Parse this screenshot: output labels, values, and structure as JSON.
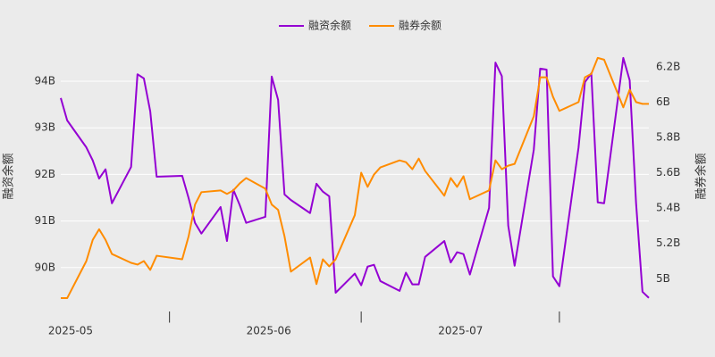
{
  "chart_data": {
    "type": "line",
    "x": [
      "2025-05-01",
      "2025-05-02",
      "2025-05-05",
      "2025-05-06",
      "2025-05-07",
      "2025-05-08",
      "2025-05-09",
      "2025-05-12",
      "2025-05-13",
      "2025-05-14",
      "2025-05-15",
      "2025-05-16",
      "2025-05-20",
      "2025-05-21",
      "2025-05-22",
      "2025-05-23",
      "2025-05-26",
      "2025-05-27",
      "2025-05-28",
      "2025-05-29",
      "2025-05-30",
      "2025-06-02",
      "2025-06-03",
      "2025-06-04",
      "2025-06-05",
      "2025-06-06",
      "2025-06-09",
      "2025-06-10",
      "2025-06-11",
      "2025-06-12",
      "2025-06-13",
      "2025-06-16",
      "2025-06-17",
      "2025-06-18",
      "2025-06-19",
      "2025-06-20",
      "2025-06-23",
      "2025-06-24",
      "2025-06-25",
      "2025-06-26",
      "2025-06-27",
      "2025-06-30",
      "2025-07-01",
      "2025-07-02",
      "2025-07-03",
      "2025-07-04",
      "2025-07-07",
      "2025-07-08",
      "2025-07-09",
      "2025-07-10",
      "2025-07-11",
      "2025-07-14",
      "2025-07-15",
      "2025-07-16",
      "2025-07-17",
      "2025-07-18",
      "2025-07-21",
      "2025-07-22",
      "2025-07-23",
      "2025-07-24",
      "2025-07-25",
      "2025-07-28",
      "2025-07-29",
      "2025-07-30",
      "2025-07-31",
      "2025-08-01"
    ],
    "series": [
      {
        "name": "融资余额",
        "color": "#9400d3",
        "axis": "y",
        "values": [
          93.64,
          93.16,
          92.58,
          92.3,
          91.91,
          92.11,
          91.38,
          92.16,
          94.15,
          94.06,
          93.35,
          91.95,
          91.97,
          91.49,
          90.96,
          90.73,
          91.3,
          90.57,
          91.67,
          91.34,
          90.96,
          91.09,
          94.1,
          93.6,
          91.57,
          91.45,
          91.17,
          91.8,
          91.63,
          91.53,
          89.46,
          89.87,
          89.62,
          90.02,
          90.06,
          89.71,
          89.5,
          89.89,
          89.64,
          89.64,
          90.23,
          90.57,
          90.11,
          90.33,
          90.29,
          89.85,
          91.28,
          94.4,
          94.11,
          90.9,
          90.04,
          92.53,
          94.27,
          94.25,
          89.81,
          89.6,
          92.58,
          93.98,
          94.17,
          91.4,
          91.38,
          94.5,
          94.02,
          91.38,
          89.48,
          89.35
        ]
      },
      {
        "name": "融券余额",
        "color": "#ff8c00",
        "axis": "y2",
        "values": [
          4.89,
          4.89,
          5.1,
          5.22,
          5.28,
          5.22,
          5.14,
          5.09,
          5.08,
          5.1,
          5.05,
          5.13,
          5.11,
          5.24,
          5.42,
          5.49,
          5.5,
          5.48,
          5.5,
          5.54,
          5.57,
          5.51,
          5.42,
          5.39,
          5.24,
          5.04,
          5.12,
          4.97,
          5.11,
          5.07,
          5.11,
          5.36,
          5.6,
          5.52,
          5.59,
          5.63,
          5.67,
          5.66,
          5.62,
          5.68,
          5.61,
          5.47,
          5.57,
          5.52,
          5.58,
          5.45,
          5.5,
          5.67,
          5.62,
          5.64,
          5.65,
          5.92,
          6.14,
          6.14,
          6.03,
          5.95,
          6.0,
          6.14,
          6.16,
          6.25,
          6.24,
          5.97,
          6.07,
          6.0,
          5.99,
          5.99
        ]
      }
    ],
    "ylabel": "融资余额",
    "y2label": "融券余额",
    "xlim": [
      "2025-05-01",
      "2025-08-01"
    ],
    "xticks": [
      {
        "value": "2025-05-01",
        "label": "2025-05"
      },
      {
        "value": "2025-05-18",
        "label": "|"
      },
      {
        "value": "2025-06-01",
        "label": "2025-06"
      },
      {
        "value": "2025-06-17",
        "label": "|"
      },
      {
        "value": "2025-07-01",
        "label": "2025-07"
      },
      {
        "value": "2025-07-18",
        "label": "|"
      }
    ],
    "ylim": [
      89.23,
      94.69
    ],
    "yticks": [
      {
        "value": 90,
        "label": "90B"
      },
      {
        "value": 91,
        "label": "91B"
      },
      {
        "value": 92,
        "label": "92B"
      },
      {
        "value": 93,
        "label": "93B"
      },
      {
        "value": 94,
        "label": "94B"
      }
    ],
    "y2lim": [
      4.86,
      6.3
    ],
    "y2ticks": [
      {
        "value": 5,
        "label": "5B"
      },
      {
        "value": 5.2,
        "label": "5.2B"
      },
      {
        "value": 5.4,
        "label": "5.4B"
      },
      {
        "value": 5.6,
        "label": "5.6B"
      },
      {
        "value": 5.8,
        "label": "5.8B"
      },
      {
        "value": 6,
        "label": "6B"
      },
      {
        "value": 6.2,
        "label": "6.2B"
      }
    ],
    "grid": true,
    "legend": "top"
  }
}
